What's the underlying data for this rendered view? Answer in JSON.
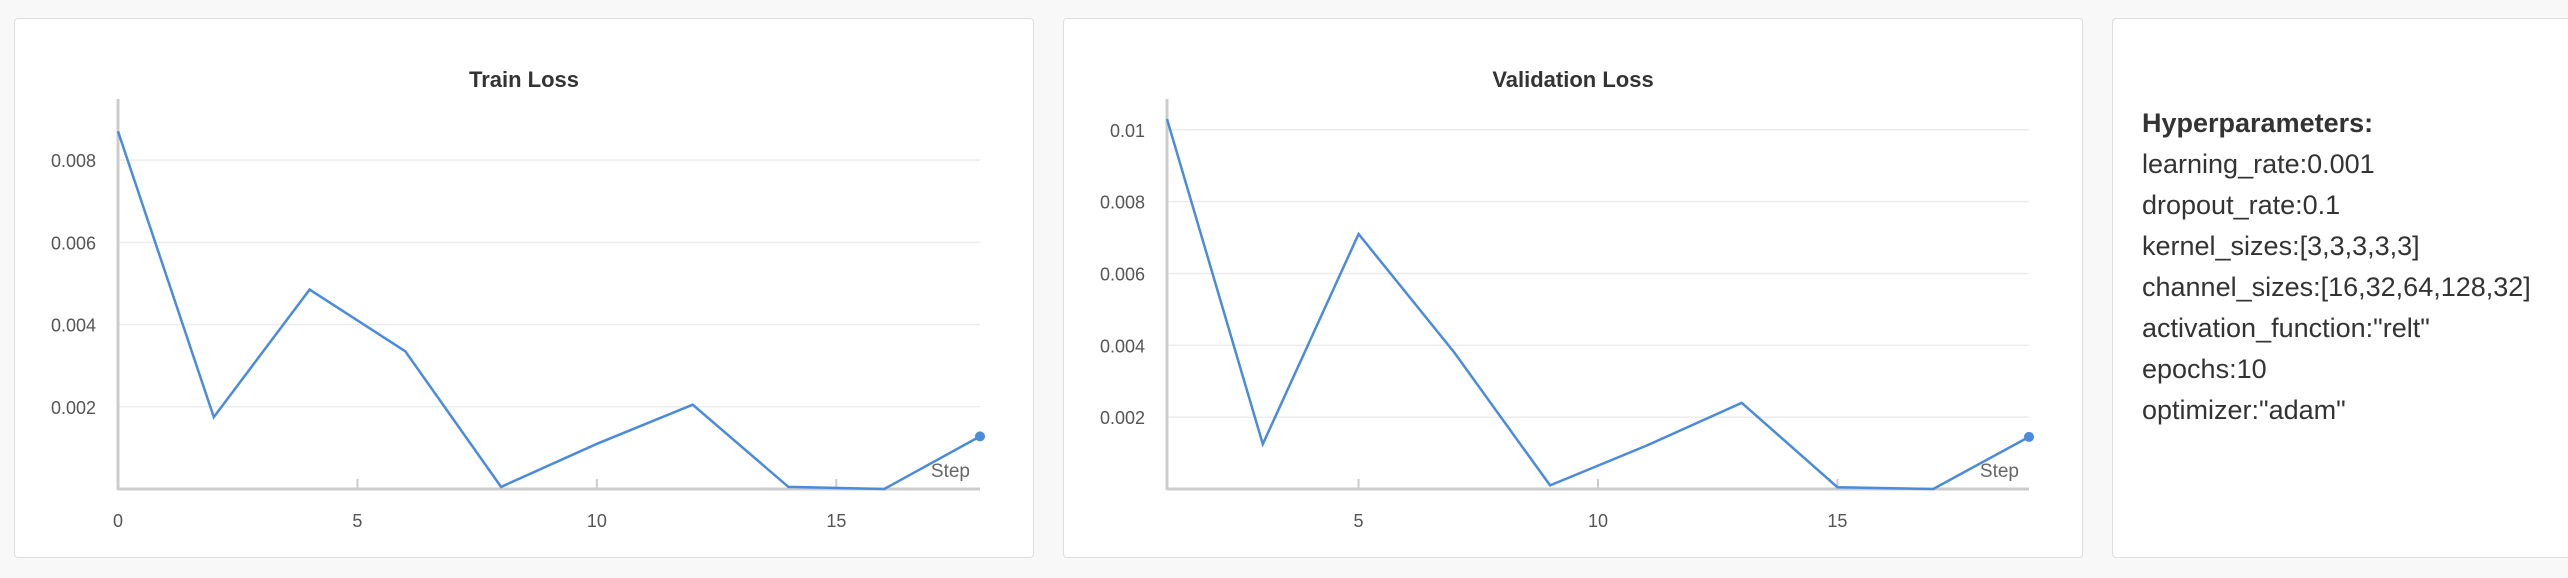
{
  "charts": {
    "train": {
      "title": "Train Loss",
      "step_label": "Step",
      "chart_data": {
        "type": "line",
        "title": "Train Loss",
        "xlabel": "Step",
        "ylabel": "",
        "x": [
          0,
          2,
          4,
          6,
          8,
          10,
          12,
          14,
          16,
          18
        ],
        "series": [
          {
            "values": [
              0.0087,
              0.00175,
              0.00485,
              0.00335,
              5e-05,
              0.0011,
              0.00205,
              5e-05,
              0.0,
              0.00128
            ]
          }
        ],
        "xlim": [
          0,
          18
        ],
        "ylim": [
          0,
          0.009
        ],
        "xticks": [
          0,
          5,
          10,
          15
        ],
        "yticks": [
          0.002,
          0.004,
          0.006,
          0.008
        ],
        "ytick_labels": [
          "0.002",
          "0.004",
          "0.006",
          "0.008"
        ],
        "grid": true,
        "color": "#4a8bdc"
      }
    },
    "validation": {
      "title": "Validation Loss",
      "step_label": "Step",
      "chart_data": {
        "type": "line",
        "title": "Validation Loss",
        "xlabel": "Step",
        "ylabel": "",
        "x": [
          1,
          3,
          5,
          7,
          9,
          11,
          13,
          15,
          17,
          19
        ],
        "series": [
          {
            "values": [
              0.0103,
              0.00125,
              0.0071,
              0.0038,
              0.0001,
              0.0012,
              0.0024,
              5e-05,
              0.0,
              0.00145
            ]
          }
        ],
        "xlim": [
          1,
          19
        ],
        "ylim": [
          0,
          0.0103
        ],
        "xticks": [
          5,
          10,
          15
        ],
        "yticks": [
          0.002,
          0.004,
          0.006,
          0.008,
          0.01
        ],
        "ytick_labels": [
          "0.002",
          "0.004",
          "0.006",
          "0.008",
          "0.01"
        ],
        "grid": true,
        "color": "#4a8bdc"
      }
    }
  },
  "hyperparameters": {
    "heading": "Hyperparameters:",
    "items": [
      "learning_rate:0.001",
      "dropout_rate:0.1",
      "kernel_sizes:[3,3,3,3,3]",
      "channel_sizes:[16,32,64,128,32]",
      "activation_function:\"relt\"",
      "epochs:10",
      "optimizer:\"adam\""
    ]
  }
}
